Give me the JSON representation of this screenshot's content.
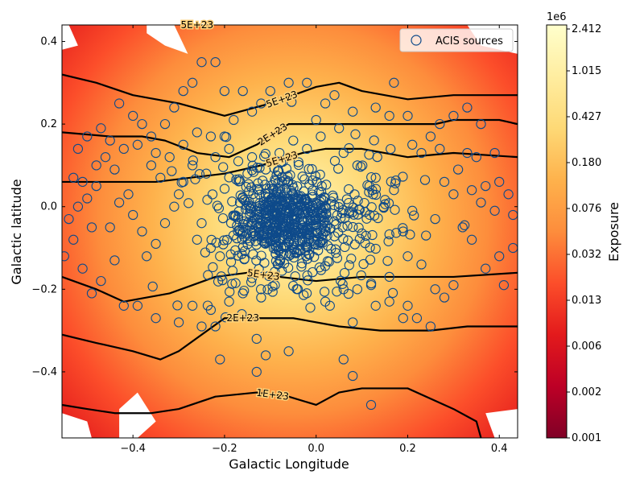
{
  "chart_data": {
    "type": "heatmap",
    "xlabel": "Galactic Longitude",
    "ylabel": "Galactic latitude",
    "xlim": [
      -0.555,
      0.44
    ],
    "ylim": [
      -0.56,
      0.44
    ],
    "x_ticks": [
      {
        "value": -0.4,
        "label": "−0.4"
      },
      {
        "value": -0.2,
        "label": "−0.2"
      },
      {
        "value": 0.0,
        "label": "0.0"
      },
      {
        "value": 0.2,
        "label": "0.2"
      },
      {
        "value": 0.4,
        "label": "0.4"
      }
    ],
    "y_ticks": [
      {
        "value": -0.4,
        "label": "−0.4"
      },
      {
        "value": -0.2,
        "label": "−0.2"
      },
      {
        "value": 0.0,
        "label": "0.0"
      },
      {
        "value": 0.2,
        "label": "0.2"
      },
      {
        "value": 0.4,
        "label": "0.4"
      }
    ],
    "colorbar": {
      "label": "Exposure",
      "multiplier": "1e6",
      "colormap": "YlOrRd_r",
      "tick_labels": [
        "0.001",
        "0.002",
        "0.006",
        "0.013",
        "0.032",
        "0.076",
        "0.180",
        "0.427",
        "1.015",
        "2.412"
      ],
      "colors": [
        "#800026",
        "#bd0026",
        "#e31a1c",
        "#fc4e2a",
        "#fd8d3c",
        "#feb24c",
        "#fed976",
        "#ffeda0",
        "#ffffcc"
      ]
    },
    "exposure_center": [
      -0.05,
      -0.03
    ],
    "white_regions": [
      [
        [
          -0.555,
          0.44
        ],
        [
          -0.54,
          0.44
        ],
        [
          -0.52,
          0.39
        ],
        [
          -0.555,
          0.38
        ]
      ],
      [
        [
          -0.37,
          0.44
        ],
        [
          -0.31,
          0.44
        ],
        [
          -0.28,
          0.37
        ],
        [
          -0.33,
          0.39
        ],
        [
          -0.37,
          0.42
        ]
      ],
      [
        [
          -0.555,
          -0.5
        ],
        [
          -0.5,
          -0.52
        ],
        [
          -0.49,
          -0.56
        ],
        [
          -0.555,
          -0.56
        ]
      ],
      [
        [
          -0.43,
          -0.49
        ],
        [
          -0.39,
          -0.45
        ],
        [
          -0.35,
          -0.52
        ],
        [
          -0.39,
          -0.56
        ],
        [
          -0.43,
          -0.56
        ]
      ],
      [
        [
          0.33,
          0.44
        ],
        [
          0.44,
          0.44
        ],
        [
          0.44,
          0.37
        ],
        [
          0.4,
          0.38
        ],
        [
          0.36,
          0.39
        ]
      ],
      [
        [
          0.37,
          -0.5
        ],
        [
          0.44,
          -0.49
        ],
        [
          0.44,
          -0.56
        ],
        [
          0.39,
          -0.56
        ]
      ]
    ],
    "contours": [
      {
        "label": "5E+23",
        "points": [
          [
            -0.555,
            0.32
          ],
          [
            -0.48,
            0.3
          ],
          [
            -0.4,
            0.27
          ],
          [
            -0.3,
            0.25
          ],
          [
            -0.2,
            0.22
          ],
          [
            -0.1,
            0.25
          ],
          [
            -0.05,
            0.27
          ],
          [
            0.0,
            0.29
          ],
          [
            0.05,
            0.3
          ],
          [
            0.1,
            0.28
          ],
          [
            0.2,
            0.26
          ],
          [
            0.3,
            0.27
          ],
          [
            0.44,
            0.27
          ]
        ]
      },
      {
        "label": "2E+23",
        "points": [
          [
            -0.555,
            0.18
          ],
          [
            -0.45,
            0.17
          ],
          [
            -0.38,
            0.17
          ],
          [
            -0.33,
            0.16
          ],
          [
            -0.26,
            0.13
          ],
          [
            -0.19,
            0.12
          ],
          [
            -0.13,
            0.15
          ],
          [
            -0.06,
            0.2
          ],
          [
            0.0,
            0.2
          ],
          [
            0.1,
            0.2
          ],
          [
            0.2,
            0.2
          ],
          [
            0.26,
            0.2
          ],
          [
            0.3,
            0.21
          ],
          [
            0.4,
            0.21
          ],
          [
            0.44,
            0.2
          ]
        ]
      },
      {
        "label": "5E+23",
        "points": [
          [
            -0.555,
            0.06
          ],
          [
            -0.45,
            0.06
          ],
          [
            -0.35,
            0.06
          ],
          [
            -0.2,
            0.08
          ],
          [
            -0.12,
            0.1
          ],
          [
            -0.03,
            0.13
          ],
          [
            0.02,
            0.14
          ],
          [
            0.1,
            0.14
          ],
          [
            0.2,
            0.12
          ],
          [
            0.3,
            0.13
          ],
          [
            0.44,
            0.12
          ]
        ]
      },
      {
        "label": "5E+23",
        "points": [
          [
            -0.555,
            -0.17
          ],
          [
            -0.48,
            -0.2
          ],
          [
            -0.42,
            -0.23
          ],
          [
            -0.32,
            -0.21
          ],
          [
            -0.22,
            -0.17
          ],
          [
            -0.15,
            -0.16
          ],
          [
            -0.08,
            -0.17
          ],
          [
            0.0,
            -0.18
          ],
          [
            0.1,
            -0.17
          ],
          [
            0.2,
            -0.17
          ],
          [
            0.3,
            -0.17
          ],
          [
            0.44,
            -0.16
          ]
        ]
      },
      {
        "label": "2E+23",
        "points": [
          [
            -0.555,
            -0.31
          ],
          [
            -0.48,
            -0.33
          ],
          [
            -0.4,
            -0.35
          ],
          [
            -0.34,
            -0.37
          ],
          [
            -0.3,
            -0.35
          ],
          [
            -0.2,
            -0.27
          ],
          [
            -0.12,
            -0.27
          ],
          [
            -0.05,
            -0.27
          ],
          [
            0.05,
            -0.29
          ],
          [
            0.14,
            -0.3
          ],
          [
            0.25,
            -0.3
          ],
          [
            0.33,
            -0.29
          ],
          [
            0.44,
            -0.29
          ]
        ]
      },
      {
        "label": "1E+23",
        "points": [
          [
            -0.555,
            -0.48
          ],
          [
            -0.5,
            -0.49
          ],
          [
            -0.44,
            -0.5
          ],
          [
            -0.36,
            -0.5
          ],
          [
            -0.3,
            -0.49
          ],
          [
            -0.22,
            -0.46
          ],
          [
            -0.13,
            -0.45
          ],
          [
            -0.06,
            -0.46
          ],
          [
            0.0,
            -0.48
          ],
          [
            0.05,
            -0.45
          ],
          [
            0.1,
            -0.44
          ],
          [
            0.2,
            -0.44
          ],
          [
            0.3,
            -0.49
          ],
          [
            0.35,
            -0.52
          ],
          [
            0.36,
            -0.56
          ]
        ]
      },
      {
        "label": "5E+23",
        "points": [
          [
            -0.27,
            0.44
          ],
          [
            -0.25,
            0.44
          ]
        ]
      }
    ],
    "series": [
      {
        "name": "ACIS sources",
        "marker": "open-circle",
        "color": "#0e4a8a",
        "scatter_groups": [
          {
            "center": [
              -0.07,
              -0.03
            ],
            "spread": [
              0.06,
              0.055
            ],
            "count": 520
          },
          {
            "center": [
              -0.06,
              -0.04
            ],
            "spread": [
              0.12,
              0.1
            ],
            "count": 160
          },
          {
            "center": [
              0.12,
              -0.02
            ],
            "spread": [
              0.04,
              0.1
            ],
            "count": 40
          }
        ],
        "points": [
          [
            -0.53,
            0.07
          ],
          [
            -0.51,
            0.06
          ],
          [
            -0.5,
            0.02
          ],
          [
            -0.48,
            0.05
          ],
          [
            -0.52,
            0.0
          ],
          [
            -0.54,
            -0.03
          ],
          [
            -0.49,
            -0.05
          ],
          [
            -0.53,
            -0.08
          ],
          [
            -0.55,
            -0.12
          ],
          [
            -0.51,
            -0.15
          ],
          [
            -0.47,
            -0.18
          ],
          [
            -0.49,
            -0.21
          ],
          [
            -0.44,
            -0.13
          ],
          [
            -0.45,
            -0.05
          ],
          [
            -0.43,
            0.01
          ],
          [
            -0.41,
            0.03
          ],
          [
            -0.4,
            -0.02
          ],
          [
            -0.38,
            -0.06
          ],
          [
            -0.37,
            -0.12
          ],
          [
            -0.35,
            -0.09
          ],
          [
            -0.33,
            -0.04
          ],
          [
            -0.31,
            0.0
          ],
          [
            -0.3,
            0.03
          ],
          [
            -0.29,
            0.06
          ],
          [
            -0.27,
            0.1
          ],
          [
            -0.25,
            -0.04
          ],
          [
            -0.26,
            -0.08
          ],
          [
            -0.23,
            -0.1
          ],
          [
            -0.21,
            -0.12
          ],
          [
            -0.24,
            0.08
          ],
          [
            -0.22,
            0.12
          ],
          [
            -0.2,
            0.17
          ],
          [
            -0.18,
            0.21
          ],
          [
            -0.47,
            0.19
          ],
          [
            -0.45,
            0.16
          ],
          [
            -0.43,
            0.25
          ],
          [
            -0.4,
            0.22
          ],
          [
            -0.38,
            0.2
          ],
          [
            -0.36,
            0.17
          ],
          [
            -0.35,
            0.13
          ],
          [
            -0.33,
            0.2
          ],
          [
            -0.31,
            0.24
          ],
          [
            -0.29,
            0.28
          ],
          [
            -0.27,
            0.3
          ],
          [
            -0.25,
            0.35
          ],
          [
            -0.22,
            0.35
          ],
          [
            -0.2,
            0.28
          ],
          [
            -0.16,
            0.28
          ],
          [
            -0.14,
            0.23
          ],
          [
            -0.12,
            0.25
          ],
          [
            -0.1,
            0.28
          ],
          [
            -0.06,
            0.3
          ],
          [
            -0.02,
            0.3
          ],
          [
            0.02,
            0.25
          ],
          [
            0.04,
            0.27
          ],
          [
            0.08,
            0.23
          ],
          [
            0.13,
            0.24
          ],
          [
            0.16,
            0.22
          ],
          [
            0.2,
            0.22
          ],
          [
            0.27,
            0.2
          ],
          [
            0.3,
            0.22
          ],
          [
            0.33,
            0.24
          ],
          [
            0.36,
            0.2
          ],
          [
            0.17,
            0.3
          ],
          [
            0.25,
            0.17
          ],
          [
            0.27,
            0.14
          ],
          [
            0.23,
            0.13
          ],
          [
            0.21,
            0.15
          ],
          [
            0.33,
            0.13
          ],
          [
            0.35,
            0.12
          ],
          [
            0.39,
            0.13
          ],
          [
            0.31,
            0.09
          ],
          [
            0.28,
            0.06
          ],
          [
            0.3,
            0.03
          ],
          [
            0.34,
            0.04
          ],
          [
            0.37,
            0.05
          ],
          [
            0.4,
            0.06
          ],
          [
            0.42,
            0.03
          ],
          [
            0.36,
            0.01
          ],
          [
            0.39,
            -0.01
          ],
          [
            0.43,
            -0.02
          ],
          [
            0.32,
            -0.05
          ],
          [
            0.34,
            -0.08
          ],
          [
            0.4,
            -0.12
          ],
          [
            0.43,
            -0.1
          ],
          [
            0.37,
            -0.15
          ],
          [
            0.41,
            -0.19
          ],
          [
            0.3,
            -0.19
          ],
          [
            0.26,
            -0.2
          ],
          [
            0.28,
            -0.22
          ],
          [
            0.2,
            -0.12
          ],
          [
            0.23,
            -0.14
          ],
          [
            0.19,
            -0.06
          ],
          [
            0.21,
            -0.01
          ],
          [
            0.17,
            0.04
          ],
          [
            0.13,
            0.07
          ],
          [
            0.09,
            0.1
          ],
          [
            0.06,
            0.13
          ],
          [
            0.05,
            0.19
          ],
          [
            0.01,
            0.17
          ],
          [
            -0.02,
            0.14
          ],
          [
            -0.05,
            0.16
          ],
          [
            0.0,
            0.21
          ],
          [
            0.24,
            -0.07
          ],
          [
            0.26,
            -0.03
          ],
          [
            0.16,
            -0.17
          ],
          [
            0.12,
            -0.19
          ],
          [
            0.09,
            -0.2
          ],
          [
            0.06,
            -0.2
          ],
          [
            0.02,
            -0.23
          ],
          [
            0.13,
            -0.24
          ],
          [
            0.16,
            -0.23
          ],
          [
            0.19,
            -0.27
          ],
          [
            0.2,
            -0.24
          ],
          [
            0.22,
            -0.27
          ],
          [
            0.25,
            -0.29
          ],
          [
            0.08,
            -0.28
          ],
          [
            0.03,
            -0.24
          ],
          [
            -0.04,
            -0.2
          ],
          [
            -0.09,
            -0.19
          ],
          [
            -0.12,
            -0.22
          ],
          [
            -0.16,
            -0.21
          ],
          [
            -0.19,
            -0.23
          ],
          [
            -0.23,
            -0.25
          ],
          [
            -0.27,
            -0.24
          ],
          [
            -0.3,
            -0.28
          ],
          [
            -0.35,
            -0.27
          ],
          [
            -0.39,
            -0.24
          ],
          [
            -0.42,
            -0.24
          ],
          [
            -0.25,
            -0.29
          ],
          [
            -0.22,
            -0.29
          ],
          [
            -0.21,
            -0.37
          ],
          [
            -0.13,
            -0.32
          ],
          [
            -0.11,
            -0.36
          ],
          [
            -0.13,
            -0.4
          ],
          [
            -0.06,
            -0.35
          ],
          [
            0.06,
            -0.37
          ],
          [
            0.08,
            -0.41
          ],
          [
            0.12,
            -0.48
          ],
          [
            -0.44,
            0.09
          ],
          [
            -0.42,
            0.14
          ],
          [
            -0.39,
            0.15
          ],
          [
            -0.36,
            0.1
          ],
          [
            -0.34,
            0.07
          ],
          [
            -0.32,
            0.12
          ],
          [
            -0.29,
            0.15
          ],
          [
            -0.26,
            0.18
          ],
          [
            -0.23,
            0.17
          ],
          [
            -0.19,
            0.14
          ],
          [
            -0.17,
            0.11
          ],
          [
            -0.15,
            0.08
          ],
          [
            -0.14,
            0.12
          ],
          [
            -0.11,
            0.09
          ],
          [
            -0.08,
            0.13
          ],
          [
            -0.46,
            0.12
          ],
          [
            -0.5,
            0.17
          ],
          [
            -0.52,
            0.14
          ],
          [
            -0.48,
            0.1
          ]
        ]
      }
    ],
    "legend": {
      "position": "top-right",
      "entries": [
        "ACIS sources"
      ]
    }
  }
}
